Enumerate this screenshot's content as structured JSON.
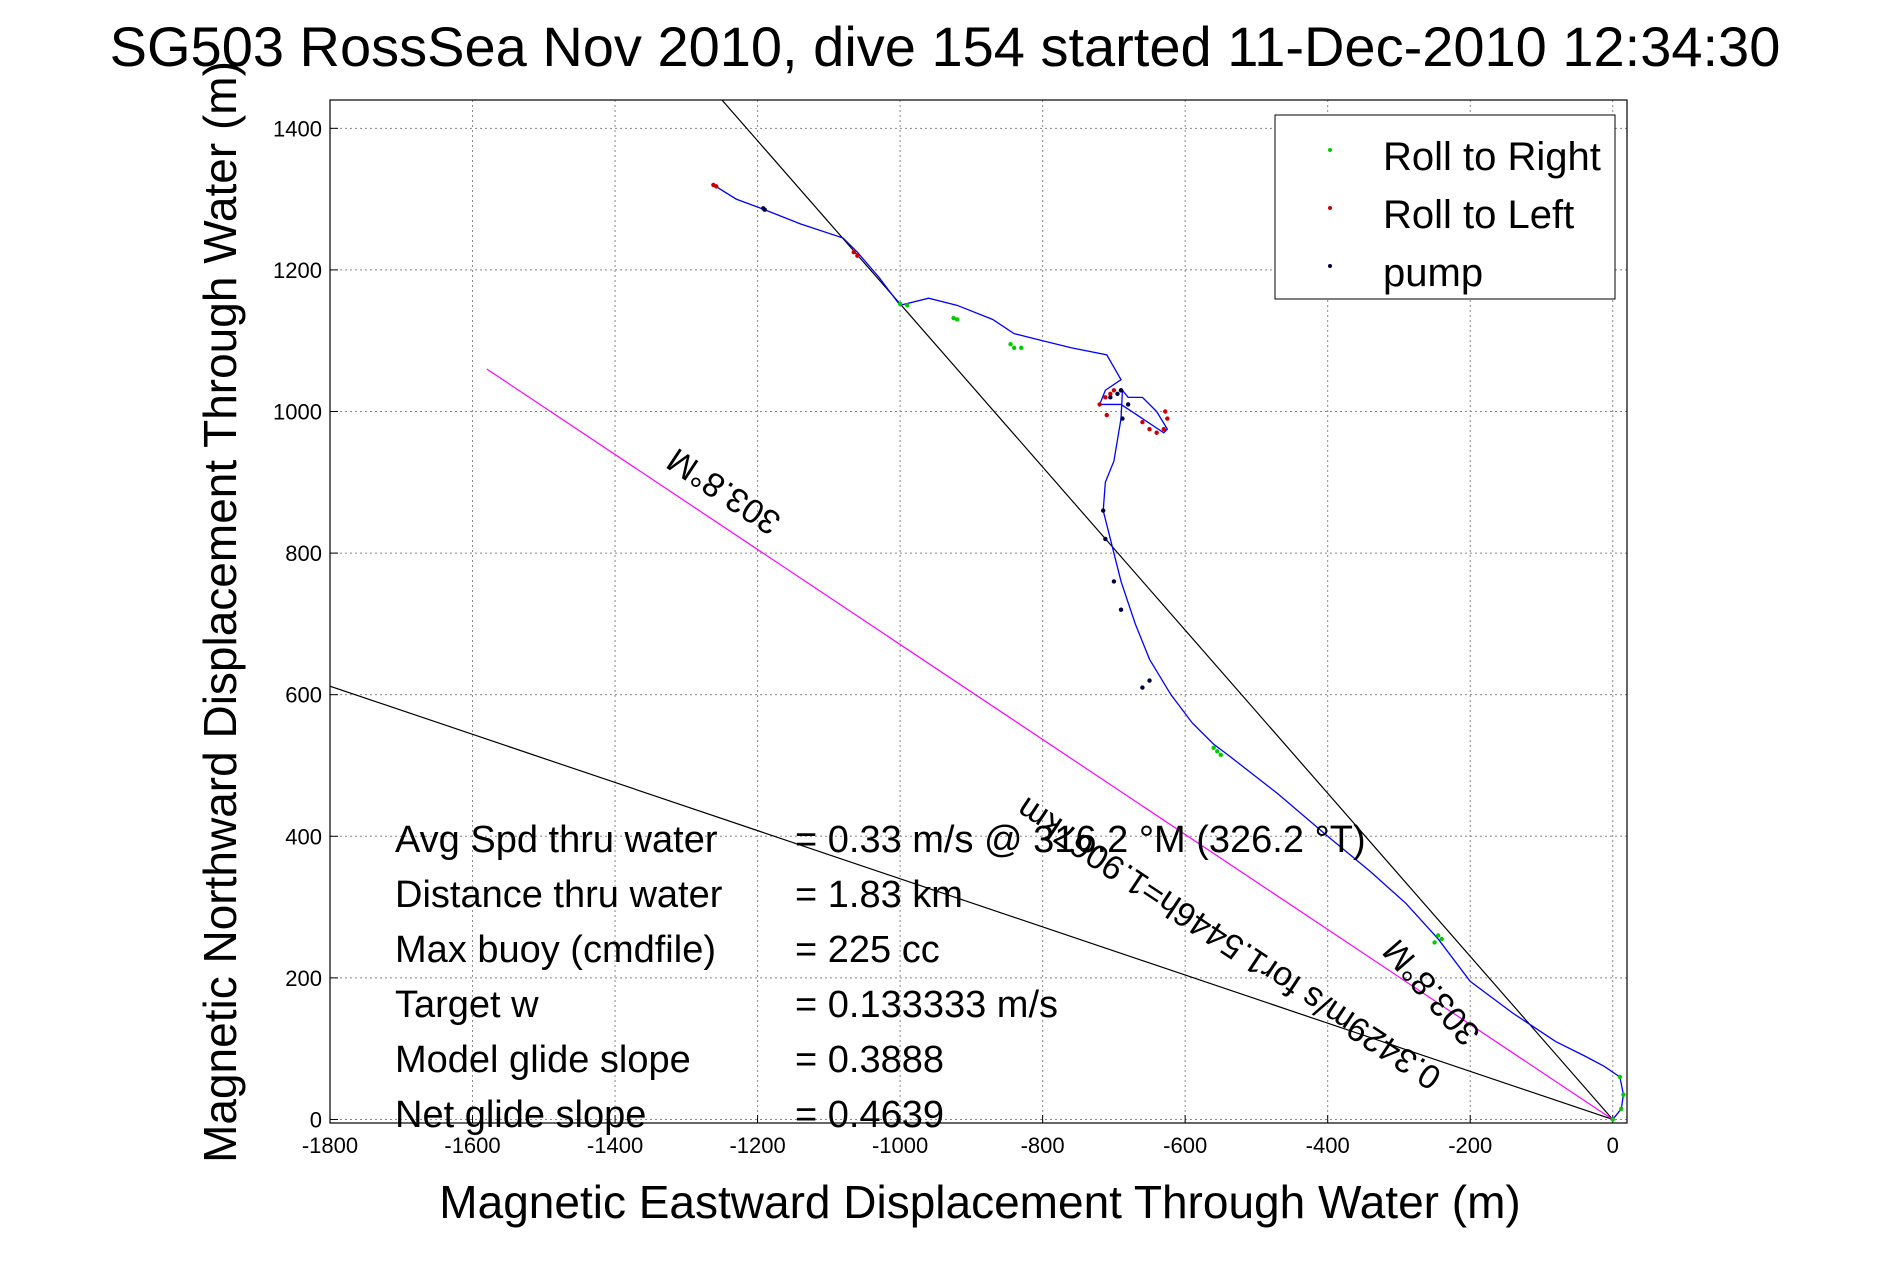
{
  "chart_data": {
    "type": "line",
    "title": "SG503 RossSea Nov 2010, dive 154 started 11-Dec-2010 12:34:30",
    "xlabel": "Magnetic Eastward Displacement Through Water (m)",
    "ylabel": "Magnetic Northward Displacement Through Water (m)",
    "xlim": [
      -1800,
      20
    ],
    "ylim": [
      -5,
      1440
    ],
    "xticks": [
      -1800,
      -1600,
      -1400,
      -1200,
      -1000,
      -800,
      -600,
      -400,
      -200,
      0
    ],
    "yticks": [
      0,
      200,
      400,
      600,
      800,
      1000,
      1200,
      1400
    ],
    "grid": true,
    "legend_position": "top-right",
    "legend": [
      {
        "label": "Roll to Right",
        "color": "#00cc00"
      },
      {
        "label": "Roll to Left",
        "color": "#cc0000"
      },
      {
        "label": "pump",
        "color": "#000044"
      }
    ],
    "track": {
      "name": "glider track",
      "color": "#0000ff",
      "x": [
        0,
        12,
        15,
        10,
        -12,
        -40,
        -80,
        -140,
        -200,
        -245,
        -290,
        -340,
        -400,
        -470,
        -540,
        -560,
        -590,
        -620,
        -650,
        -670,
        -690,
        -705,
        -715,
        -712,
        -700,
        -690,
        -688,
        -680,
        -660,
        -640,
        -625,
        -630,
        -660,
        -690,
        -720,
        -712,
        -690,
        -710,
        -760,
        -800,
        -840,
        -870,
        -920,
        -960,
        -1000,
        -1030,
        -1060,
        -1080,
        -1140,
        -1190,
        -1230,
        -1262
      ],
      "y": [
        0,
        15,
        35,
        60,
        75,
        90,
        110,
        150,
        195,
        255,
        305,
        350,
        400,
        460,
        515,
        530,
        560,
        600,
        650,
        700,
        760,
        820,
        860,
        900,
        930,
        990,
        1030,
        1020,
        1020,
        1000,
        975,
        970,
        990,
        1010,
        1010,
        1030,
        1045,
        1080,
        1090,
        1100,
        1110,
        1130,
        1150,
        1160,
        1150,
        1190,
        1225,
        1245,
        1265,
        1285,
        1300,
        1320
      ]
    },
    "roll_right_points": {
      "x": [
        0,
        12,
        15,
        10,
        -240,
        -245,
        -250,
        -550,
        -555,
        -560,
        -830,
        -840,
        -845,
        -920,
        -925,
        -990,
        -1000
      ],
      "y": [
        0,
        15,
        35,
        60,
        255,
        260,
        250,
        515,
        520,
        525,
        1090,
        1090,
        1095,
        1130,
        1132,
        1150,
        1152
      ]
    },
    "roll_left_points": {
      "x": [
        -690,
        -700,
        -705,
        -712,
        -720,
        -710,
        -660,
        -650,
        -640,
        -630,
        -625,
        -628,
        -1060,
        -1065,
        -1262,
        -1258
      ],
      "y": [
        1030,
        1030,
        1025,
        1020,
        1010,
        995,
        985,
        975,
        970,
        975,
        990,
        1000,
        1220,
        1225,
        1320,
        1318
      ]
    },
    "pump_points": {
      "x": [
        -690,
        -695,
        -705,
        -715,
        -712,
        -700,
        -690,
        -688,
        -680,
        -660,
        -650,
        -1190,
        -1192
      ],
      "y": [
        1030,
        1025,
        1020,
        860,
        820,
        760,
        720,
        990,
        1010,
        610,
        620,
        1285,
        1287
      ]
    },
    "reference_lines": [
      {
        "name": "black-line-steep",
        "color": "#000000",
        "x": [
          0,
          -1250
        ],
        "y": [
          0,
          1440
        ]
      },
      {
        "name": "black-line-shallow",
        "color": "#000000",
        "x": [
          0,
          -1800
        ],
        "y": [
          0,
          612
        ]
      },
      {
        "name": "magenta-heading-line",
        "color": "#ff00ff",
        "x": [
          0,
          -1580
        ],
        "y": [
          0,
          1060
        ]
      }
    ],
    "line_labels": [
      "303.8°M",
      "0.3429m/s for1.5446h=1.9067km",
      "303.8°M"
    ],
    "stats": [
      {
        "label": "Avg Spd thru water",
        "value": "=  0.33 m/s @ 316.2 °M (326.2 °T)"
      },
      {
        "label": "Distance thru water",
        "value": "=  1.83 km"
      },
      {
        "label": "Max buoy (cmdfile)",
        "value": "= 225 cc"
      },
      {
        "label": "Target w",
        "value": "= 0.133333 m/s"
      },
      {
        "label": "Model glide slope",
        "value": "= 0.3888"
      },
      {
        "label": "Net glide slope",
        "value": "= 0.4639"
      }
    ]
  }
}
